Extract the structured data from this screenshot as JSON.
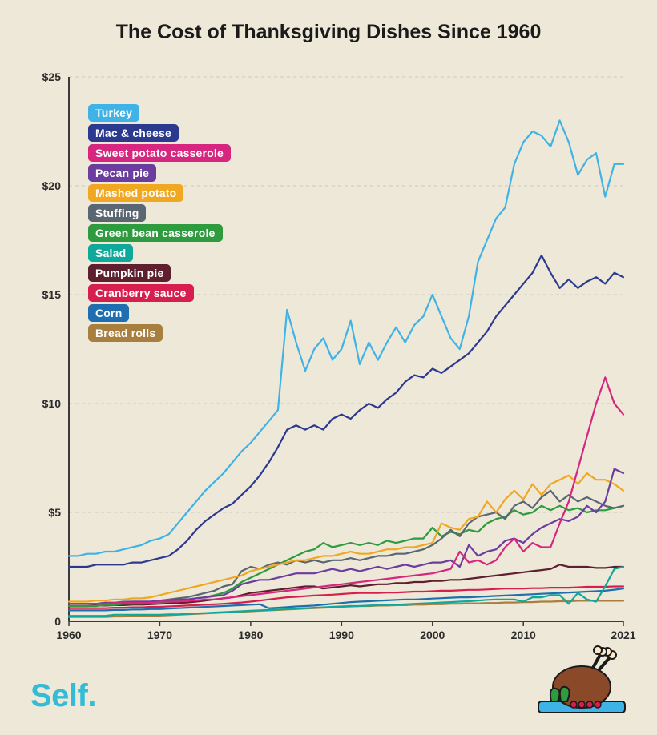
{
  "title": {
    "text": "The Cost of Thanksgiving Dishes Since 1960",
    "fontsize": 25,
    "color": "#1a1a1a"
  },
  "background_color": "#eee8d8",
  "brand": {
    "name": "Self.",
    "color": "#33bcd6",
    "fontsize": 40
  },
  "chart": {
    "type": "line",
    "x_start": 1960,
    "x_end": 2021,
    "ylim": [
      0,
      25
    ],
    "ytick_step": 5,
    "ytick_prefix": "$",
    "xticks": [
      1960,
      1970,
      1980,
      1990,
      2000,
      2010,
      2021
    ],
    "grid_color": "#cfc9bb",
    "axis_color": "#3a3a3a",
    "axis_width": 2,
    "tick_fontsize": 14,
    "line_width": 2.2,
    "series": [
      {
        "name": "Turkey",
        "color": "#3fb3e6",
        "y": [
          3.0,
          3.0,
          3.1,
          3.1,
          3.2,
          3.2,
          3.3,
          3.4,
          3.5,
          3.7,
          3.8,
          4.0,
          4.5,
          5.0,
          5.5,
          6.0,
          6.4,
          6.8,
          7.3,
          7.8,
          8.2,
          8.7,
          9.2,
          9.7,
          14.3,
          12.8,
          11.5,
          12.5,
          13.0,
          12.0,
          12.5,
          13.8,
          11.8,
          12.8,
          12.0,
          12.8,
          13.5,
          12.8,
          13.6,
          14.0,
          15.0,
          14.0,
          13.0,
          12.5,
          14.0,
          16.5,
          17.5,
          18.5,
          19.0,
          21.0,
          22.0,
          22.5,
          22.3,
          21.8,
          23.0,
          22.0,
          20.5,
          21.2,
          21.5,
          19.5,
          21.0,
          21.0
        ]
      },
      {
        "name": "Mac & cheese",
        "color": "#2b3a8f",
        "y": [
          2.5,
          2.5,
          2.5,
          2.6,
          2.6,
          2.6,
          2.6,
          2.7,
          2.7,
          2.8,
          2.9,
          3.0,
          3.3,
          3.7,
          4.2,
          4.6,
          4.9,
          5.2,
          5.4,
          5.8,
          6.2,
          6.7,
          7.3,
          8.0,
          8.8,
          9.0,
          8.8,
          9.0,
          8.8,
          9.3,
          9.5,
          9.3,
          9.7,
          10.0,
          9.8,
          10.2,
          10.5,
          11.0,
          11.3,
          11.2,
          11.6,
          11.4,
          11.7,
          12.0,
          12.3,
          12.8,
          13.3,
          14.0,
          14.5,
          15.0,
          15.5,
          16.0,
          16.8,
          16.0,
          15.3,
          15.7,
          15.3,
          15.6,
          15.8,
          15.5,
          16.0,
          15.8
        ]
      },
      {
        "name": "Sweet potato casserole",
        "color": "#d6267f",
        "y": [
          0.8,
          0.8,
          0.8,
          0.8,
          0.8,
          0.85,
          0.85,
          0.85,
          0.85,
          0.85,
          0.9,
          0.9,
          0.9,
          0.95,
          0.95,
          1.0,
          1.0,
          1.05,
          1.1,
          1.15,
          1.2,
          1.25,
          1.3,
          1.35,
          1.4,
          1.45,
          1.5,
          1.55,
          1.6,
          1.65,
          1.7,
          1.75,
          1.8,
          1.85,
          1.9,
          1.95,
          2.0,
          2.05,
          2.1,
          2.15,
          2.2,
          2.3,
          2.4,
          3.2,
          2.7,
          2.8,
          2.6,
          2.8,
          3.4,
          3.8,
          3.2,
          3.6,
          3.4,
          3.4,
          4.5,
          5.5,
          7.0,
          8.5,
          10.0,
          11.2,
          10.0,
          9.5
        ]
      },
      {
        "name": "Pecan pie",
        "color": "#6b3d9e",
        "y": [
          0.8,
          0.8,
          0.8,
          0.8,
          0.85,
          0.85,
          0.85,
          0.9,
          0.9,
          0.9,
          0.95,
          0.95,
          1.0,
          1.0,
          1.05,
          1.1,
          1.15,
          1.2,
          1.4,
          1.7,
          1.8,
          1.9,
          1.9,
          2.0,
          2.1,
          2.2,
          2.2,
          2.2,
          2.3,
          2.4,
          2.3,
          2.4,
          2.3,
          2.4,
          2.5,
          2.4,
          2.5,
          2.6,
          2.5,
          2.6,
          2.7,
          2.7,
          2.8,
          2.5,
          3.5,
          3.0,
          3.2,
          3.3,
          3.7,
          3.8,
          3.6,
          4.0,
          4.3,
          4.5,
          4.7,
          4.6,
          4.8,
          5.3,
          5.0,
          5.5,
          7.0,
          6.8
        ]
      },
      {
        "name": "Mashed potato",
        "color": "#f0a722",
        "y": [
          0.9,
          0.9,
          0.9,
          0.95,
          0.95,
          1.0,
          1.0,
          1.05,
          1.05,
          1.1,
          1.2,
          1.3,
          1.4,
          1.5,
          1.6,
          1.7,
          1.8,
          1.9,
          2.0,
          2.1,
          2.3,
          2.4,
          2.5,
          2.6,
          2.7,
          2.8,
          2.8,
          2.9,
          3.0,
          3.0,
          3.1,
          3.2,
          3.1,
          3.1,
          3.2,
          3.3,
          3.3,
          3.4,
          3.4,
          3.5,
          3.6,
          4.5,
          4.3,
          4.2,
          4.7,
          4.8,
          5.5,
          5.0,
          5.6,
          6.0,
          5.6,
          6.3,
          5.8,
          6.3,
          6.5,
          6.7,
          6.3,
          6.8,
          6.5,
          6.5,
          6.3,
          6.0
        ]
      },
      {
        "name": "Stuffing",
        "color": "#5a6672",
        "y": [
          0.8,
          0.8,
          0.8,
          0.8,
          0.85,
          0.85,
          0.9,
          0.9,
          0.9,
          0.9,
          0.95,
          1.0,
          1.05,
          1.1,
          1.2,
          1.3,
          1.4,
          1.6,
          1.7,
          2.3,
          2.5,
          2.4,
          2.6,
          2.7,
          2.6,
          2.8,
          2.7,
          2.8,
          2.7,
          2.8,
          2.8,
          2.9,
          2.8,
          2.9,
          3.0,
          3.0,
          3.1,
          3.1,
          3.2,
          3.3,
          3.5,
          3.8,
          4.2,
          3.9,
          4.5,
          4.8,
          4.9,
          5.0,
          4.7,
          5.3,
          5.5,
          5.2,
          5.7,
          6.0,
          5.5,
          5.8,
          5.5,
          5.7,
          5.5,
          5.3,
          5.2,
          5.3
        ]
      },
      {
        "name": "Green bean casserole",
        "color": "#2e9b3f",
        "y": [
          0.7,
          0.7,
          0.7,
          0.7,
          0.75,
          0.75,
          0.8,
          0.8,
          0.8,
          0.85,
          0.85,
          0.9,
          0.95,
          1.0,
          1.05,
          1.1,
          1.2,
          1.3,
          1.5,
          1.8,
          2.0,
          2.2,
          2.4,
          2.6,
          2.8,
          3.0,
          3.2,
          3.3,
          3.6,
          3.4,
          3.5,
          3.6,
          3.5,
          3.6,
          3.5,
          3.7,
          3.6,
          3.7,
          3.8,
          3.8,
          4.3,
          3.9,
          4.1,
          4.0,
          4.2,
          4.1,
          4.5,
          4.7,
          4.8,
          5.1,
          4.9,
          5.0,
          5.3,
          5.1,
          5.3,
          5.1,
          5.2,
          5.0,
          5.1,
          5.1,
          5.2,
          5.3
        ]
      },
      {
        "name": "Salad",
        "color": "#0fa89a",
        "y": [
          0.25,
          0.25,
          0.25,
          0.25,
          0.25,
          0.3,
          0.3,
          0.3,
          0.3,
          0.3,
          0.3,
          0.32,
          0.32,
          0.34,
          0.36,
          0.38,
          0.4,
          0.42,
          0.44,
          0.46,
          0.48,
          0.5,
          0.52,
          0.54,
          0.56,
          0.58,
          0.6,
          0.62,
          0.64,
          0.66,
          0.68,
          0.7,
          0.7,
          0.72,
          0.74,
          0.76,
          0.76,
          0.78,
          0.8,
          0.82,
          0.84,
          0.86,
          0.88,
          0.9,
          0.92,
          0.95,
          0.98,
          1.0,
          1.0,
          1.0,
          0.9,
          1.1,
          1.1,
          1.2,
          1.2,
          0.8,
          1.3,
          1.0,
          0.9,
          1.6,
          2.4,
          2.5
        ]
      },
      {
        "name": "Pumpkin pie",
        "color": "#5e1f2e",
        "y": [
          0.7,
          0.7,
          0.7,
          0.72,
          0.72,
          0.74,
          0.74,
          0.76,
          0.76,
          0.78,
          0.8,
          0.82,
          0.84,
          0.86,
          0.9,
          0.95,
          1.0,
          1.05,
          1.1,
          1.2,
          1.3,
          1.35,
          1.4,
          1.45,
          1.5,
          1.55,
          1.6,
          1.6,
          1.5,
          1.55,
          1.6,
          1.65,
          1.6,
          1.65,
          1.7,
          1.7,
          1.75,
          1.75,
          1.8,
          1.8,
          1.85,
          1.85,
          1.9,
          1.9,
          1.95,
          2.0,
          2.05,
          2.1,
          2.15,
          2.2,
          2.25,
          2.3,
          2.35,
          2.4,
          2.6,
          2.5,
          2.5,
          2.5,
          2.45,
          2.45,
          2.5,
          2.5
        ]
      },
      {
        "name": "Cranberry sauce",
        "color": "#d61f4e",
        "y": [
          0.6,
          0.6,
          0.6,
          0.6,
          0.6,
          0.62,
          0.62,
          0.64,
          0.64,
          0.66,
          0.66,
          0.68,
          0.7,
          0.72,
          0.74,
          0.76,
          0.78,
          0.8,
          0.83,
          0.86,
          0.9,
          0.95,
          1.0,
          1.05,
          1.1,
          1.12,
          1.15,
          1.18,
          1.2,
          1.22,
          1.25,
          1.28,
          1.3,
          1.3,
          1.3,
          1.32,
          1.32,
          1.34,
          1.36,
          1.36,
          1.38,
          1.4,
          1.4,
          1.42,
          1.44,
          1.44,
          1.46,
          1.48,
          1.5,
          1.5,
          1.5,
          1.52,
          1.52,
          1.54,
          1.54,
          1.54,
          1.56,
          1.58,
          1.58,
          1.58,
          1.6,
          1.6
        ]
      },
      {
        "name": "Corn",
        "color": "#1f6fb0",
        "y": [
          0.5,
          0.5,
          0.5,
          0.5,
          0.5,
          0.52,
          0.52,
          0.54,
          0.54,
          0.56,
          0.56,
          0.58,
          0.6,
          0.62,
          0.64,
          0.66,
          0.68,
          0.7,
          0.72,
          0.74,
          0.76,
          0.78,
          0.6,
          0.62,
          0.65,
          0.68,
          0.7,
          0.72,
          0.76,
          0.8,
          0.84,
          0.88,
          0.9,
          0.92,
          0.94,
          0.96,
          0.98,
          1.0,
          1.0,
          1.02,
          1.04,
          1.06,
          1.08,
          1.1,
          1.1,
          1.12,
          1.14,
          1.16,
          1.18,
          1.2,
          1.22,
          1.24,
          1.26,
          1.28,
          1.3,
          1.32,
          1.34,
          1.36,
          1.38,
          1.4,
          1.45,
          1.5
        ]
      },
      {
        "name": "Bread rolls",
        "color": "#a87f3f",
        "y": [
          0.2,
          0.2,
          0.2,
          0.2,
          0.2,
          0.22,
          0.22,
          0.24,
          0.24,
          0.26,
          0.26,
          0.28,
          0.3,
          0.32,
          0.34,
          0.36,
          0.38,
          0.4,
          0.42,
          0.44,
          0.46,
          0.48,
          0.5,
          0.52,
          0.54,
          0.56,
          0.58,
          0.6,
          0.62,
          0.64,
          0.66,
          0.68,
          0.7,
          0.7,
          0.72,
          0.72,
          0.74,
          0.74,
          0.76,
          0.76,
          0.78,
          0.78,
          0.8,
          0.8,
          0.82,
          0.82,
          0.84,
          0.84,
          0.86,
          0.86,
          0.88,
          0.88,
          0.9,
          0.9,
          0.92,
          0.92,
          0.94,
          0.94,
          0.94,
          0.94,
          0.94,
          0.94
        ]
      }
    ]
  },
  "legend": {
    "fontsize": 14
  },
  "turkey_icon": {
    "body_color": "#8a4a2a",
    "bone_color": "#fbe9c9",
    "plate_color": "#3fb3e6",
    "leaf_color": "#2e9b3f",
    "berry_color": "#d61f4e"
  }
}
